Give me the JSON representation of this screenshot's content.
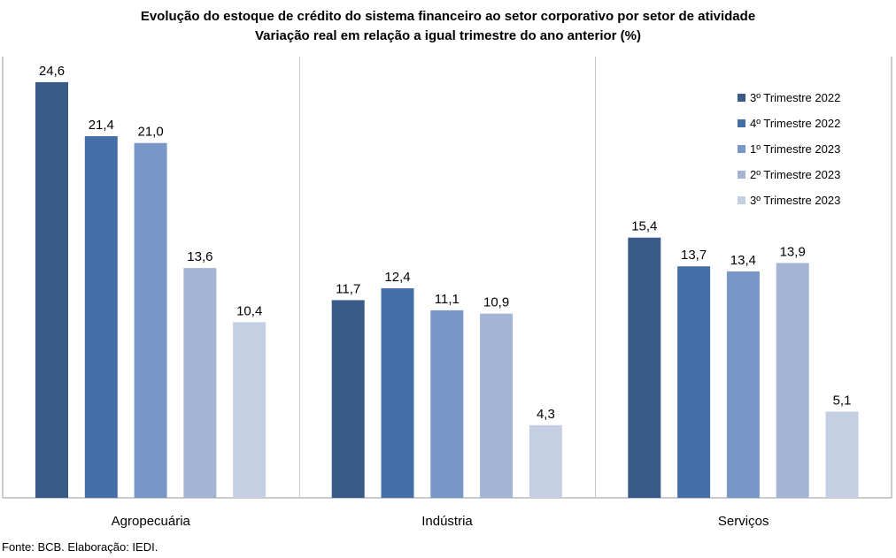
{
  "chart_data": {
    "type": "bar",
    "title": "Evolução do estoque de crédito do sistema financeiro ao setor corporativo por setor de atividade",
    "subtitle": "Variação real em relação a igual trimestre do ano anterior (%)",
    "categories": [
      "Agropecuária",
      "Indústria",
      "Serviços"
    ],
    "series": [
      {
        "name": "3º Trimestre 2022",
        "color": "#3A5A87",
        "values": [
          24.6,
          11.7,
          15.4
        ],
        "labels": [
          "24,6",
          "11,7",
          "15,4"
        ]
      },
      {
        "name": "4º Trimestre 2022",
        "color": "#436FA6",
        "values": [
          21.4,
          12.4,
          13.7
        ],
        "labels": [
          "21,4",
          "12,4",
          "13,7"
        ]
      },
      {
        "name": "1º Trimestre 2023",
        "color": "#7896C7",
        "values": [
          21.0,
          11.1,
          13.4
        ],
        "labels": [
          "21,0",
          "11,1",
          "13,4"
        ]
      },
      {
        "name": "2º Trimestre 2023",
        "color": "#A3B4D5",
        "values": [
          13.6,
          10.9,
          13.9
        ],
        "labels": [
          "13,6",
          "10,9",
          "13,9"
        ]
      },
      {
        "name": "3º Trimestre 2023",
        "color": "#C5CFE3",
        "values": [
          10.4,
          4.3,
          5.1
        ],
        "labels": [
          "10,4",
          "4,3",
          "5,1"
        ]
      }
    ],
    "ylim": [
      0,
      26
    ],
    "grid": false,
    "legend": "top-right",
    "source": "Fonte: BCB. Elaboração: IEDI."
  }
}
